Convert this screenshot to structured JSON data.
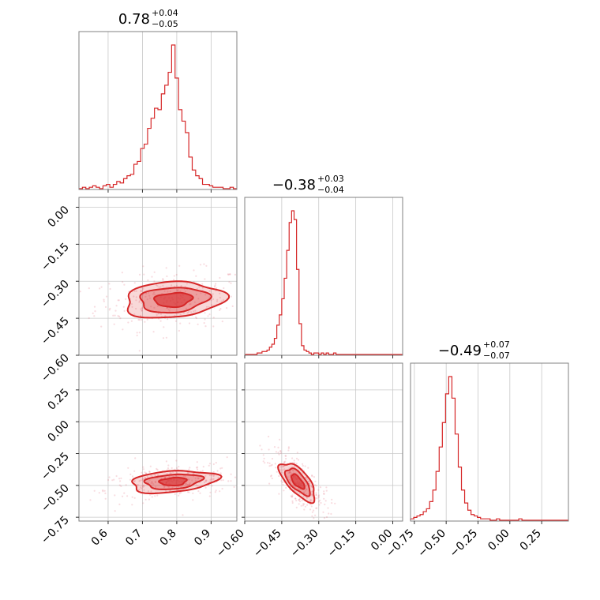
{
  "chart_data": {
    "type": "corner",
    "color": "#d62728",
    "parameters": [
      {
        "title_value": "0.78",
        "title_plus": "+0.04",
        "title_minus": "−0.05"
      },
      {
        "title_value": "−0.38",
        "title_plus": "+0.03",
        "title_minus": "−0.04"
      },
      {
        "title_value": "−0.49",
        "title_plus": "+0.07",
        "title_minus": "−0.07"
      }
    ],
    "ranges": [
      [
        0.515,
        0.975
      ],
      [
        -0.6,
        0.04
      ],
      [
        -0.78,
        0.46
      ]
    ],
    "ticks": [
      {
        "values": [
          0.6,
          0.7,
          0.8,
          0.9
        ],
        "labels": [
          "0.6",
          "0.7",
          "0.8",
          "0.9"
        ]
      },
      {
        "values": [
          0.0,
          -0.15,
          -0.3,
          -0.45,
          -0.6
        ],
        "labels": [
          "0.00",
          "−0.15",
          "−0.30",
          "−0.45",
          "−0.60"
        ]
      },
      {
        "values": [
          0.25,
          0.0,
          -0.25,
          -0.5,
          -0.75
        ],
        "labels": [
          "0.25",
          "0.00",
          "−0.25",
          "−0.50",
          "−0.75"
        ]
      }
    ],
    "histograms": [
      {
        "bins": [
          0.515,
          0.525,
          0.535,
          0.545,
          0.555,
          0.565,
          0.575,
          0.585,
          0.595,
          0.605,
          0.615,
          0.625,
          0.635,
          0.645,
          0.655,
          0.665,
          0.675,
          0.685,
          0.695,
          0.705,
          0.715,
          0.725,
          0.735,
          0.745,
          0.755,
          0.765,
          0.775,
          0.785,
          0.795,
          0.805,
          0.815,
          0.825,
          0.835,
          0.845,
          0.855,
          0.865,
          0.875,
          0.885,
          0.895,
          0.905,
          0.915,
          0.925,
          0.935,
          0.945,
          0.955,
          0.965,
          0.975
        ],
        "counts": [
          0,
          1,
          0,
          1,
          2,
          1,
          0,
          2,
          3,
          1,
          3,
          5,
          4,
          7,
          9,
          10,
          17,
          19,
          28,
          31,
          42,
          49,
          56,
          55,
          66,
          72,
          81,
          100,
          77,
          55,
          47,
          39,
          22,
          13,
          9,
          7,
          3,
          3,
          2,
          1,
          1,
          1,
          0,
          0,
          1,
          0
        ]
      },
      {
        "bins": [
          -0.6,
          -0.59,
          -0.58,
          -0.57,
          -0.56,
          -0.55,
          -0.54,
          -0.53,
          -0.52,
          -0.51,
          -0.5,
          -0.49,
          -0.48,
          -0.47,
          -0.46,
          -0.45,
          -0.44,
          -0.43,
          -0.42,
          -0.41,
          -0.4,
          -0.39,
          -0.38,
          -0.37,
          -0.36,
          -0.35,
          -0.34,
          -0.33,
          -0.32,
          -0.31,
          -0.3,
          -0.29,
          -0.28,
          -0.27,
          -0.26,
          -0.25,
          -0.24,
          -0.23,
          -0.22,
          -0.21,
          -0.2,
          -0.19,
          -0.18,
          -0.17,
          -0.16,
          -0.15,
          -0.14,
          -0.13,
          -0.12,
          -0.11,
          -0.1,
          -0.09,
          -0.08,
          -0.07,
          -0.06,
          -0.05,
          -0.04,
          -0.03,
          -0.02,
          -0.01,
          0.0,
          0.01,
          0.02,
          0.03,
          0.04
        ],
        "counts": [
          0,
          0,
          0,
          0,
          0,
          1,
          1,
          2,
          2,
          3,
          5,
          7,
          11,
          20,
          27,
          38,
          52,
          71,
          90,
          98,
          92,
          58,
          21,
          6,
          3,
          2,
          1,
          0,
          1,
          1,
          0,
          1,
          0,
          1,
          0,
          0,
          1,
          0,
          0,
          0,
          0,
          0,
          0,
          0,
          0,
          0,
          0,
          0,
          0,
          0,
          0,
          0,
          0,
          0,
          0,
          0,
          0,
          0,
          0,
          0,
          0,
          0,
          0,
          0
        ]
      },
      {
        "bins": [
          -0.78,
          -0.755,
          -0.73,
          -0.705,
          -0.68,
          -0.655,
          -0.63,
          -0.605,
          -0.58,
          -0.555,
          -0.53,
          -0.505,
          -0.48,
          -0.455,
          -0.43,
          -0.405,
          -0.38,
          -0.355,
          -0.33,
          -0.305,
          -0.28,
          -0.255,
          -0.23,
          -0.205,
          -0.18,
          -0.155,
          -0.13,
          -0.105,
          -0.08,
          -0.055,
          -0.03,
          -0.005,
          0.02,
          0.045,
          0.07,
          0.095,
          0.12,
          0.145,
          0.17,
          0.195,
          0.22,
          0.245,
          0.27,
          0.295,
          0.32,
          0.345,
          0.37,
          0.395,
          0.42,
          0.445,
          0.46
        ],
        "counts": [
          1,
          2,
          3,
          4,
          6,
          8,
          13,
          21,
          34,
          51,
          68,
          88,
          100,
          85,
          60,
          37,
          21,
          12,
          7,
          4,
          3,
          2,
          1,
          1,
          1,
          0,
          0,
          1,
          0,
          0,
          0,
          0,
          0,
          0,
          1,
          0,
          0,
          0,
          0,
          0,
          0,
          0,
          0,
          0,
          0,
          0,
          0,
          0,
          0,
          0
        ]
      }
    ],
    "pair_contours": [
      {
        "x": 0,
        "y": 1,
        "center": [
          0.79,
          -0.375
        ],
        "angle_deg": 6,
        "levels": [
          [
            0.055,
            0.028
          ],
          [
            0.1,
            0.05
          ],
          [
            0.145,
            0.072
          ]
        ]
      },
      {
        "x": 0,
        "y": 2,
        "center": [
          0.79,
          -0.47
        ],
        "angle_deg": 19,
        "levels": [
          [
            0.04,
            0.03
          ],
          [
            0.085,
            0.055
          ],
          [
            0.13,
            0.08
          ]
        ]
      },
      {
        "x": 1,
        "y": 2,
        "center": [
          -0.385,
          -0.47
        ],
        "angle_deg": -70,
        "levels": [
          [
            0.06,
            0.018
          ],
          [
            0.11,
            0.035
          ],
          [
            0.16,
            0.05
          ]
        ]
      }
    ],
    "grid": true
  }
}
